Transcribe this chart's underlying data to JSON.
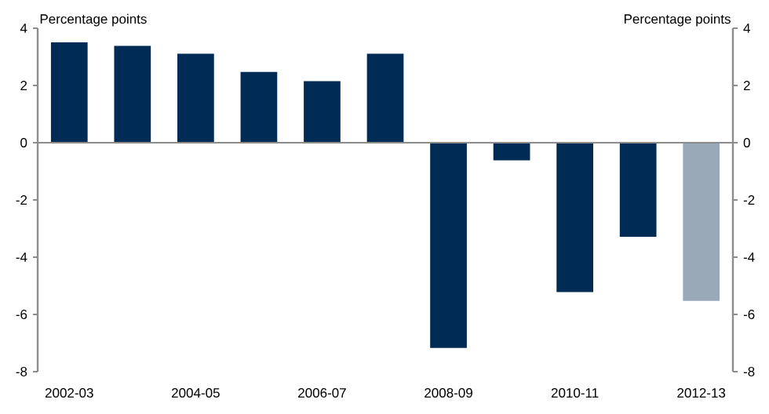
{
  "chart_data": {
    "type": "bar",
    "categories": [
      "2002-03",
      null,
      "2004-05",
      null,
      "2006-07",
      null,
      "2008-09",
      null,
      "2010-11",
      null,
      "2012-13"
    ],
    "values": [
      3.51,
      3.38,
      3.11,
      2.47,
      2.15,
      3.11,
      -7.17,
      -0.62,
      -5.22,
      -3.29,
      -5.53
    ],
    "colors": [
      "#002b54",
      "#002b54",
      "#002b54",
      "#002b54",
      "#002b54",
      "#002b54",
      "#002b54",
      "#002b54",
      "#002b54",
      "#002b54",
      "#9aa9b8"
    ],
    "ylabel": "Percentage points",
    "y2label": "Percentage points",
    "ylim": [
      -8,
      4
    ],
    "yticks": [
      -8,
      -6,
      -4,
      -2,
      0,
      2,
      4
    ],
    "y2lim": [
      -8,
      4
    ],
    "y2ticks": [
      -8,
      -6,
      -4,
      -2,
      0,
      2,
      4
    ],
    "tick_labels": true
  }
}
